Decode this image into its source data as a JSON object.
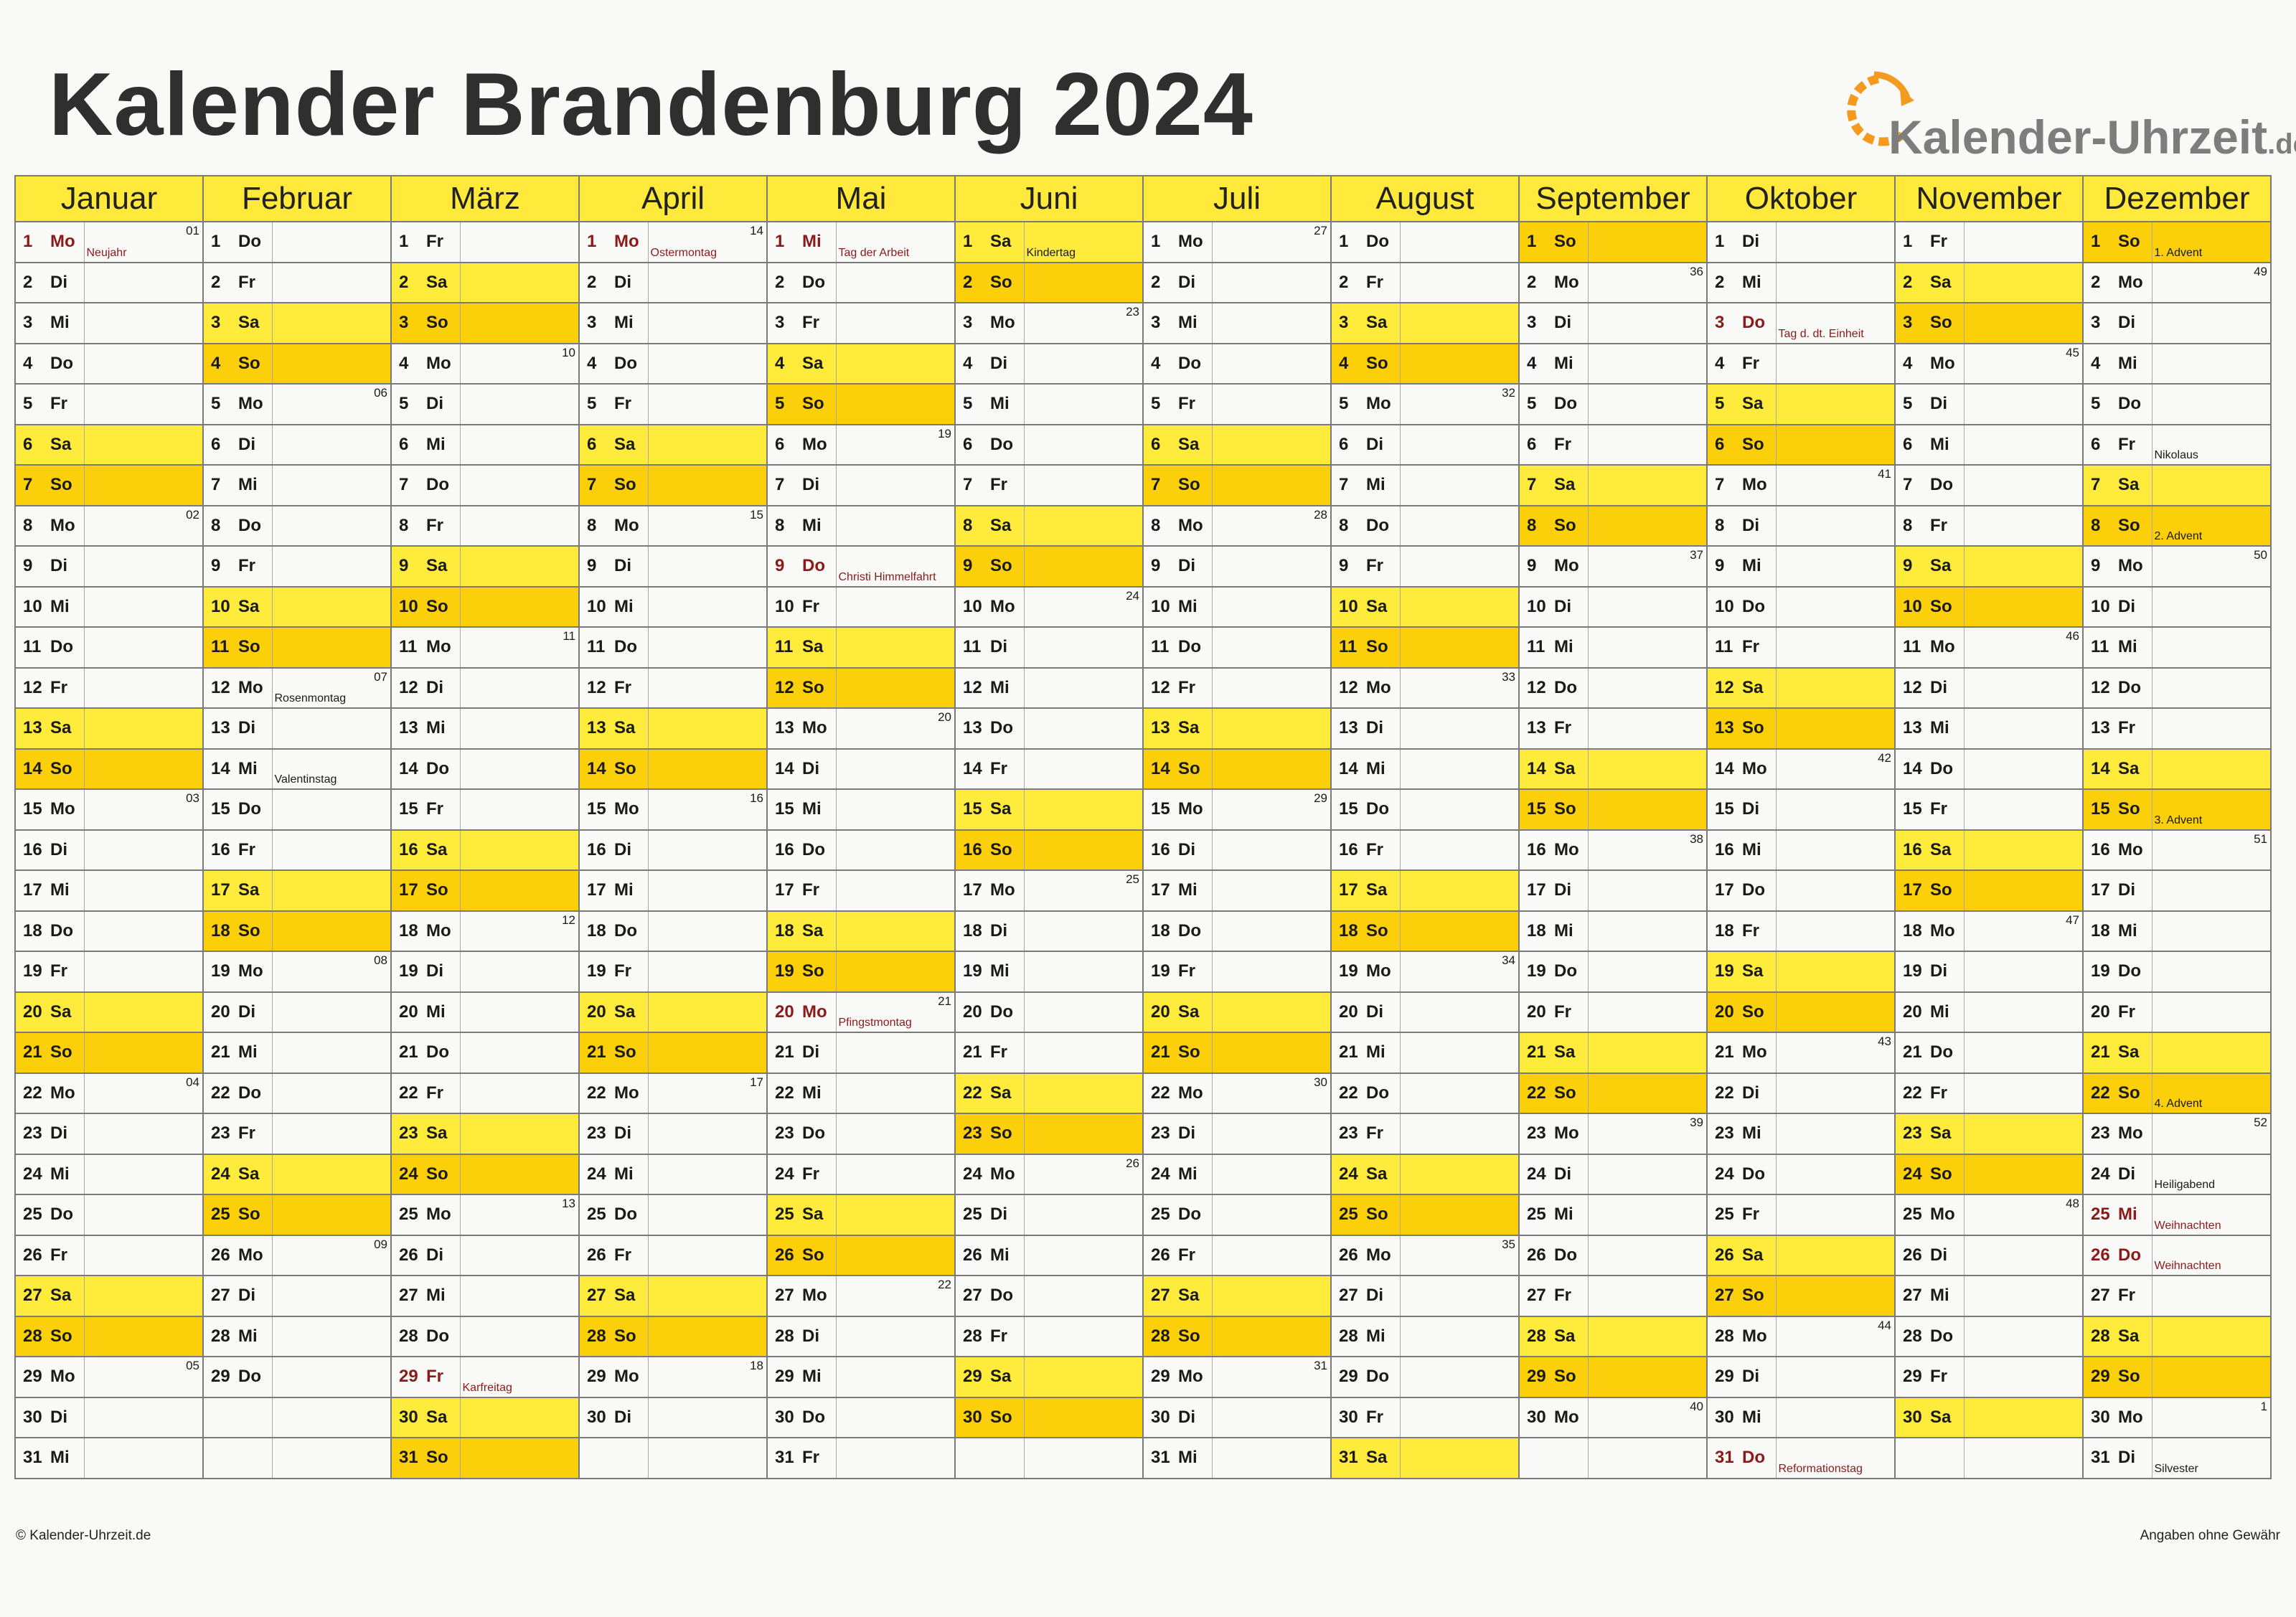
{
  "title": "Kalender Brandenburg 2024",
  "logo": {
    "text": "Kalender-Uhrzeit",
    "tld": ".de"
  },
  "colors": {
    "saturday": "#ffeb3b",
    "sunday": "#fccf0b",
    "header": "#ffe93b",
    "holiday_text": "#8b1a1a"
  },
  "footer": {
    "left": "© Kalender-Uhrzeit.de",
    "right": "Angaben ohne Gewähr"
  },
  "months": [
    {
      "name": "Januar",
      "days": 31,
      "first_weekday": 0,
      "holidays": {
        "1": {
          "label": "Neujahr",
          "public": true
        }
      },
      "kw": {
        "1": "01",
        "8": "02",
        "15": "03",
        "22": "04",
        "29": "05"
      }
    },
    {
      "name": "Februar",
      "days": 29,
      "first_weekday": 3,
      "holidays": {
        "12": {
          "label": "Rosenmontag",
          "public": false
        },
        "14": {
          "label": "Valentinstag",
          "public": false
        }
      },
      "kw": {
        "5": "06",
        "12": "07",
        "19": "08",
        "26": "09"
      }
    },
    {
      "name": "März",
      "days": 31,
      "first_weekday": 4,
      "holidays": {
        "29": {
          "label": "Karfreitag",
          "public": true
        }
      },
      "kw": {
        "4": "10",
        "11": "11",
        "18": "12",
        "25": "13"
      }
    },
    {
      "name": "April",
      "days": 30,
      "first_weekday": 0,
      "holidays": {
        "1": {
          "label": "Ostermontag",
          "public": true
        }
      },
      "kw": {
        "1": "14",
        "8": "15",
        "15": "16",
        "22": "17",
        "29": "18"
      }
    },
    {
      "name": "Mai",
      "days": 31,
      "first_weekday": 2,
      "holidays": {
        "1": {
          "label": "Tag der Arbeit",
          "public": true
        },
        "9": {
          "label": "Christi Himmelfahrt",
          "public": true
        },
        "20": {
          "label": "Pfingstmontag",
          "public": true
        }
      },
      "kw": {
        "6": "19",
        "13": "20",
        "20": "21",
        "27": "22"
      }
    },
    {
      "name": "Juni",
      "days": 30,
      "first_weekday": 5,
      "holidays": {
        "1": {
          "label": "Kindertag",
          "public": false
        }
      },
      "kw": {
        "3": "23",
        "10": "24",
        "17": "25",
        "24": "26"
      }
    },
    {
      "name": "Juli",
      "days": 31,
      "first_weekday": 0,
      "holidays": {},
      "kw": {
        "1": "27",
        "8": "28",
        "15": "29",
        "22": "30",
        "29": "31"
      }
    },
    {
      "name": "August",
      "days": 31,
      "first_weekday": 3,
      "holidays": {},
      "kw": {
        "5": "32",
        "12": "33",
        "19": "34",
        "26": "35"
      }
    },
    {
      "name": "September",
      "days": 30,
      "first_weekday": 6,
      "holidays": {},
      "kw": {
        "2": "36",
        "9": "37",
        "16": "38",
        "23": "39",
        "30": "40"
      }
    },
    {
      "name": "Oktober",
      "days": 31,
      "first_weekday": 1,
      "holidays": {
        "3": {
          "label": "Tag d. dt. Einheit",
          "public": true
        },
        "31": {
          "label": "Reformationstag",
          "public": true
        }
      },
      "kw": {
        "7": "41",
        "14": "42",
        "21": "43",
        "28": "44"
      }
    },
    {
      "name": "November",
      "days": 30,
      "first_weekday": 4,
      "holidays": {},
      "kw": {
        "4": "45",
        "11": "46",
        "18": "47",
        "25": "48"
      }
    },
    {
      "name": "Dezember",
      "days": 31,
      "first_weekday": 6,
      "holidays": {
        "1": {
          "label": "1. Advent",
          "public": false
        },
        "6": {
          "label": "Nikolaus",
          "public": false
        },
        "8": {
          "label": "2. Advent",
          "public": false
        },
        "15": {
          "label": "3. Advent",
          "public": false
        },
        "22": {
          "label": "4. Advent",
          "public": false
        },
        "24": {
          "label": "Heiligabend",
          "public": false
        },
        "25": {
          "label": "Weihnachten",
          "public": true
        },
        "26": {
          "label": "Weihnachten",
          "public": true
        },
        "31": {
          "label": "Silvester",
          "public": false
        }
      },
      "kw": {
        "2": "49",
        "9": "50",
        "16": "51",
        "23": "52",
        "30": "1"
      }
    }
  ],
  "weekdays": [
    "Mo",
    "Di",
    "Mi",
    "Do",
    "Fr",
    "Sa",
    "So"
  ]
}
